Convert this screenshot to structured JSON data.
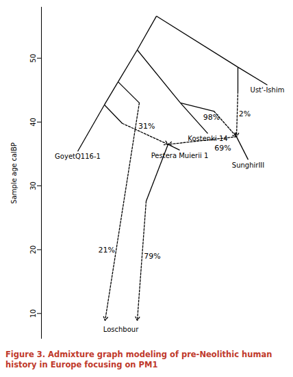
{
  "chart_data": {
    "type": "admixture_graph",
    "title": "Figure 3. Admixture graph modeling of pre-Neolithic human history in Europe focusing on PM1",
    "y_label": "Sample age calBP",
    "ylim": [
      6,
      58
    ],
    "yticks": [
      10,
      20,
      30,
      40,
      50
    ],
    "tick_labels": "y",
    "color": "#f6a623",
    "nodes": [
      {
        "age": 56.6
      },
      {
        "age": 48.6
      },
      {
        "age": 45.8,
        "label": "Ust'-Ishim"
      },
      {
        "age": 44.8
      },
      {
        "age": 51.3
      },
      {
        "age": 43.0
      },
      {
        "age": 38.2,
        "label": "Kostenki 14"
      },
      {
        "age": 41.7
      },
      {
        "age": 37.7
      },
      {
        "age": 34.1,
        "label": "SunghirIII"
      },
      {
        "age": 46.3
      },
      {
        "age": 42.7
      },
      {
        "age": 35.4,
        "label": "GoyetQ116-1"
      },
      {
        "age": 39.8
      },
      {
        "age": 43.0
      },
      {
        "age": 36.5
      },
      {
        "age": 35.6,
        "label": "Pestera Muierii 1"
      },
      {
        "age": 27.6
      },
      {
        "age": 8.9
      },
      {
        "age": 8.9
      },
      {
        "age": 8.3,
        "label": "Loschbour"
      }
    ],
    "edges": [
      {
        "from": 0,
        "to": 1,
        "line_style": "solid"
      },
      {
        "from": 0,
        "to": 4,
        "line_style": "solid"
      },
      {
        "from": 1,
        "to": 2,
        "line_style": "solid"
      },
      {
        "from": 1,
        "to": 3,
        "line_style": "solid"
      },
      {
        "from": 3,
        "to": 8,
        "line_style": "dashed",
        "weight": 2,
        "weight_label": "2%"
      },
      {
        "from": 4,
        "to": 5,
        "line_style": "solid"
      },
      {
        "from": 4,
        "to": 10,
        "line_style": "solid"
      },
      {
        "from": 5,
        "to": 6,
        "line_style": "solid"
      },
      {
        "from": 5,
        "to": 7,
        "line_style": "solid"
      },
      {
        "from": 7,
        "to": 8,
        "line_style": "dashed",
        "weight": 98,
        "weight_label": "98%"
      },
      {
        "from": 8,
        "to": 9,
        "line_style": "solid"
      },
      {
        "from": 8,
        "to": 15,
        "line_style": "dashed",
        "weight": 69,
        "weight_label": "69%"
      },
      {
        "from": 10,
        "to": 11,
        "line_style": "solid"
      },
      {
        "from": 10,
        "to": 14,
        "line_style": "solid"
      },
      {
        "from": 11,
        "to": 12,
        "line_style": "solid"
      },
      {
        "from": 11,
        "to": 13,
        "line_style": "solid"
      },
      {
        "from": 13,
        "to": 15,
        "line_style": "dashed",
        "weight": 31,
        "weight_label": "31%"
      },
      {
        "from": 15,
        "to": 16,
        "line_style": "solid"
      },
      {
        "from": 15,
        "to": 17,
        "line_style": "solid"
      },
      {
        "from": 17,
        "to": 19,
        "line_style": "dashed",
        "weight": 79,
        "weight_label": "79%"
      },
      {
        "from": 14,
        "to": 18,
        "line_style": "dashed",
        "weight": 21,
        "weight_label": "21%"
      }
    ]
  }
}
